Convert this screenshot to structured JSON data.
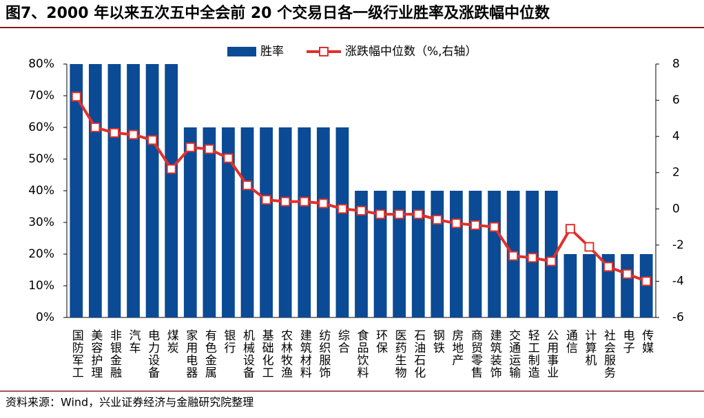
{
  "chart_data": {
    "type": "bar",
    "title": "图7、2000 年以来五次五中全会前 20 个交易日各一级行业胜率及涨跌幅中位数",
    "source": "资料来源：Wind，兴业证券经济与金融研究院整理",
    "categories": [
      "国防军工",
      "美容护理",
      "非银金融",
      "汽车",
      "电力设备",
      "煤炭",
      "家用电器",
      "有色金属",
      "银行",
      "机械设备",
      "基础化工",
      "农林牧渔",
      "建筑材料",
      "纺织服饰",
      "综合",
      "食品饮料",
      "环保",
      "医药生物",
      "石油石化",
      "钢铁",
      "房地产",
      "商贸零售",
      "建筑装饰",
      "交通运输",
      "轻工制造",
      "公用事业",
      "通信",
      "计算机",
      "社会服务",
      "电子",
      "传媒"
    ],
    "series": [
      {
        "name": "胜率",
        "type": "bar",
        "color": "#0b4a94",
        "values": [
          80,
          80,
          80,
          80,
          80,
          80,
          60,
          60,
          60,
          60,
          60,
          60,
          60,
          60,
          60,
          40,
          40,
          40,
          40,
          40,
          40,
          40,
          40,
          40,
          40,
          40,
          20,
          20,
          20,
          20,
          20
        ]
      },
      {
        "name": "涨跌幅中位数（%,右轴）",
        "type": "line",
        "axis": "y2",
        "color": "#e0302a",
        "values": [
          6.2,
          4.5,
          4.2,
          4.1,
          3.8,
          2.2,
          3.4,
          3.3,
          2.8,
          1.3,
          0.5,
          0.4,
          0.4,
          0.3,
          0.0,
          -0.1,
          -0.3,
          -0.3,
          -0.3,
          -0.6,
          -0.8,
          -0.9,
          -1.0,
          -2.6,
          -2.7,
          -2.9,
          -1.1,
          -2.1,
          -3.2,
          -3.6,
          -4.0
        ]
      }
    ],
    "ylim": [
      0,
      80
    ],
    "yticks": [
      {
        "value": 0,
        "label": "0%"
      },
      {
        "value": 10,
        "label": "10%"
      },
      {
        "value": 20,
        "label": "20%"
      },
      {
        "value": 30,
        "label": "30%"
      },
      {
        "value": 40,
        "label": "40%"
      },
      {
        "value": 50,
        "label": "50%"
      },
      {
        "value": 60,
        "label": "60%"
      },
      {
        "value": 70,
        "label": "70%"
      },
      {
        "value": 80,
        "label": "80%"
      }
    ],
    "y2lim": [
      -6,
      8
    ],
    "y2ticks": [
      -6,
      -4,
      -2,
      0,
      2,
      4,
      6,
      8
    ],
    "legend": "top"
  }
}
